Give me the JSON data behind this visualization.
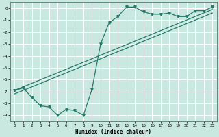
{
  "xlabel": "Humidex (Indice chaleur)",
  "xlim": [
    -0.5,
    23.5
  ],
  "ylim": [
    -9.5,
    0.5
  ],
  "yticks": [
    0,
    -1,
    -2,
    -3,
    -4,
    -5,
    -6,
    -7,
    -8,
    -9
  ],
  "xticks": [
    0,
    1,
    2,
    3,
    4,
    5,
    6,
    7,
    8,
    9,
    10,
    11,
    12,
    13,
    14,
    15,
    16,
    17,
    18,
    19,
    20,
    21,
    22,
    23
  ],
  "bg_color": "#c8e8e0",
  "grid_color": "#ffffff",
  "line_color": "#217a6a",
  "line1_x": [
    0,
    1,
    2,
    3,
    4,
    5,
    6,
    7,
    8,
    9,
    10,
    11,
    12,
    13,
    14,
    15,
    16,
    17,
    18,
    19,
    20,
    21,
    22,
    23
  ],
  "line1_y": [
    -6.9,
    -6.7,
    -7.5,
    -8.2,
    -8.3,
    -9.0,
    -8.5,
    -8.6,
    -9.0,
    -6.8,
    -3.0,
    -1.2,
    -0.7,
    0.1,
    0.1,
    -0.3,
    -0.5,
    -0.5,
    -0.4,
    -0.7,
    -0.7,
    -0.2,
    -0.2,
    0.1
  ],
  "line2_x": [
    0,
    23
  ],
  "line2_y": [
    -6.9,
    -0.1
  ],
  "line3_x": [
    0,
    23
  ],
  "line3_y": [
    -7.2,
    -0.4
  ],
  "dot_size": 2.5,
  "linewidth": 0.9
}
